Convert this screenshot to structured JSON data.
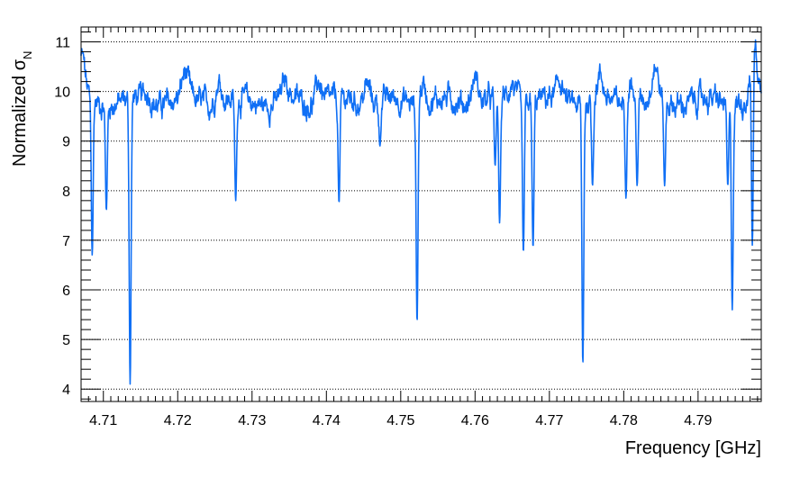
{
  "chart_data": {
    "type": "line",
    "title": "",
    "xlabel": "Frequency [GHz]",
    "ylabel_main": "Normalized σ",
    "ylabel_sub": "N",
    "xlim": [
      4.707,
      4.7985
    ],
    "ylim": [
      3.75,
      11.3
    ],
    "x_ticks": [
      4.71,
      4.72,
      4.73,
      4.74,
      4.75,
      4.76,
      4.77,
      4.78,
      4.79
    ],
    "x_tick_labels": [
      "4.71",
      "4.72",
      "4.73",
      "4.74",
      "4.75",
      "4.76",
      "4.77",
      "4.78",
      "4.79"
    ],
    "y_ticks": [
      4,
      5,
      6,
      7,
      8,
      9,
      10,
      11
    ],
    "y_tick_labels": [
      "4",
      "5",
      "6",
      "7",
      "8",
      "9",
      "10",
      "11"
    ],
    "grid": "horizontal dotted at y major ticks",
    "line_color": "#0f6ff5",
    "series": [
      {
        "baseline": 9.8,
        "dips": [
          [
            4.7085,
            6.7
          ],
          [
            4.7104,
            7.6
          ],
          [
            4.7136,
            4.1
          ],
          [
            4.7278,
            7.8
          ],
          [
            4.7417,
            7.75
          ],
          [
            4.7472,
            8.9
          ],
          [
            4.7522,
            5.35
          ],
          [
            4.7627,
            8.5
          ],
          [
            4.7633,
            7.35
          ],
          [
            4.7665,
            6.75
          ],
          [
            4.7678,
            6.85
          ],
          [
            4.7745,
            4.5
          ],
          [
            4.7758,
            8.1
          ],
          [
            4.7803,
            7.85
          ],
          [
            4.7818,
            8.1
          ],
          [
            4.7855,
            8.1
          ],
          [
            4.794,
            8.1
          ],
          [
            4.7946,
            5.6
          ],
          [
            4.7973,
            6.9
          ]
        ],
        "bumps": [
          [
            4.7071,
            10.65
          ],
          [
            4.716,
            10.0
          ],
          [
            4.721,
            10.3
          ],
          [
            4.7255,
            10.25
          ],
          [
            4.7345,
            10.15
          ],
          [
            4.739,
            10.25
          ],
          [
            4.7455,
            10.2
          ],
          [
            4.753,
            10.2
          ],
          [
            4.76,
            10.35
          ],
          [
            4.765,
            10.2
          ],
          [
            4.7715,
            10.2
          ],
          [
            4.7768,
            10.25
          ],
          [
            4.7808,
            10.35
          ],
          [
            4.7842,
            10.5
          ],
          [
            4.7975,
            11.0
          ]
        ]
      }
    ]
  }
}
